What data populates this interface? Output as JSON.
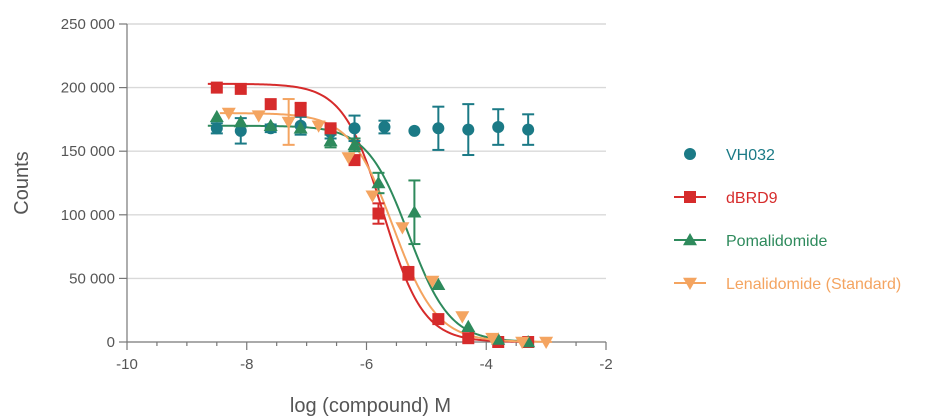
{
  "chart_data": {
    "type": "scatter",
    "title": "",
    "xlabel": "log (compound) M",
    "ylabel": "Counts",
    "xlim": [
      -10,
      -2
    ],
    "ylim": [
      0,
      250000
    ],
    "x_ticks": [
      -10,
      -8,
      -6,
      -4,
      -2
    ],
    "x_tick_labels": [
      "-10",
      "-8",
      "-6",
      "-4",
      "-2"
    ],
    "y_ticks": [
      0,
      50000,
      100000,
      150000,
      200000,
      250000
    ],
    "y_tick_labels": [
      "0",
      "50 000",
      "100 000",
      "150 000",
      "200 000",
      "250 000"
    ],
    "grid": "horizontal",
    "legend_position": "right",
    "series": [
      {
        "name": "VH032",
        "color": "#1b7a86",
        "marker": "circle",
        "fit": false,
        "points": [
          {
            "x": -8.5,
            "y": 168000,
            "err": 4000
          },
          {
            "x": -8.1,
            "y": 166000,
            "err": 10000
          },
          {
            "x": -7.6,
            "y": 168000,
            "err": 3000
          },
          {
            "x": -7.1,
            "y": 170000,
            "err": 7000
          },
          {
            "x": -6.6,
            "y": 165000,
            "err": 5000
          },
          {
            "x": -6.2,
            "y": 168000,
            "err": 10000
          },
          {
            "x": -5.7,
            "y": 169000,
            "err": 5000
          },
          {
            "x": -5.2,
            "y": 166000,
            "err": 0
          },
          {
            "x": -4.8,
            "y": 168000,
            "err": 17000
          },
          {
            "x": -4.3,
            "y": 167000,
            "err": 20000
          },
          {
            "x": -3.8,
            "y": 169000,
            "err": 14000
          },
          {
            "x": -3.3,
            "y": 167000,
            "err": 12000
          }
        ]
      },
      {
        "name": "dBRD9",
        "color": "#d62b2b",
        "marker": "square",
        "fit": {
          "top": 203000,
          "bottom": 0,
          "logec50": -5.72,
          "hill": -1.3
        },
        "points": [
          {
            "x": -8.5,
            "y": 200000,
            "err": 0
          },
          {
            "x": -8.1,
            "y": 199000,
            "err": 0
          },
          {
            "x": -7.6,
            "y": 187000,
            "err": 0
          },
          {
            "x": -7.1,
            "y": 183000,
            "err": 5000
          },
          {
            "x": -6.6,
            "y": 168000,
            "err": 0
          },
          {
            "x": -6.2,
            "y": 143000,
            "err": 0
          },
          {
            "x": -5.8,
            "y": 101000,
            "err": 8000
          },
          {
            "x": -5.3,
            "y": 54000,
            "err": 5000
          },
          {
            "x": -4.8,
            "y": 18000,
            "err": 0
          },
          {
            "x": -4.3,
            "y": 3000,
            "err": 0
          },
          {
            "x": -3.8,
            "y": 0,
            "err": 0
          },
          {
            "x": -3.3,
            "y": 0,
            "err": 0
          }
        ]
      },
      {
        "name": "Pomalidomide",
        "color": "#2e8a5c",
        "marker": "triangle-up",
        "fit": {
          "top": 170000,
          "bottom": 0,
          "logec50": -5.3,
          "hill": -1.25
        },
        "points": [
          {
            "x": -8.5,
            "y": 177000,
            "err": 0
          },
          {
            "x": -8.1,
            "y": 173000,
            "err": 0
          },
          {
            "x": -7.6,
            "y": 170000,
            "err": 0
          },
          {
            "x": -7.1,
            "y": 168000,
            "err": 0
          },
          {
            "x": -6.6,
            "y": 158000,
            "err": 5000
          },
          {
            "x": -6.2,
            "y": 155000,
            "err": 5000
          },
          {
            "x": -5.8,
            "y": 125000,
            "err": 8000
          },
          {
            "x": -5.2,
            "y": 102000,
            "err": 25000
          },
          {
            "x": -4.8,
            "y": 45000,
            "err": 0
          },
          {
            "x": -4.3,
            "y": 12000,
            "err": 0
          },
          {
            "x": -3.8,
            "y": 2000,
            "err": 0
          },
          {
            "x": -3.3,
            "y": 0,
            "err": 0
          }
        ]
      },
      {
        "name": "Lenalidomide (Standard)",
        "color": "#f4a460",
        "marker": "triangle-down",
        "fit": {
          "top": 180000,
          "bottom": 0,
          "logec50": -5.55,
          "hill": -1.2
        },
        "points": [
          {
            "x": -8.3,
            "y": 180000,
            "err": 0
          },
          {
            "x": -7.8,
            "y": 178000,
            "err": 0
          },
          {
            "x": -7.3,
            "y": 173000,
            "err": 18000
          },
          {
            "x": -6.8,
            "y": 170000,
            "err": 0
          },
          {
            "x": -6.3,
            "y": 145000,
            "err": 0
          },
          {
            "x": -5.9,
            "y": 115000,
            "err": 0
          },
          {
            "x": -5.4,
            "y": 90000,
            "err": 0
          },
          {
            "x": -4.9,
            "y": 48000,
            "err": 0
          },
          {
            "x": -4.4,
            "y": 20000,
            "err": 0
          },
          {
            "x": -3.9,
            "y": 3000,
            "err": 0
          },
          {
            "x": -3.4,
            "y": 0,
            "err": 0
          },
          {
            "x": -3.0,
            "y": 0,
            "err": 0
          }
        ]
      }
    ]
  }
}
